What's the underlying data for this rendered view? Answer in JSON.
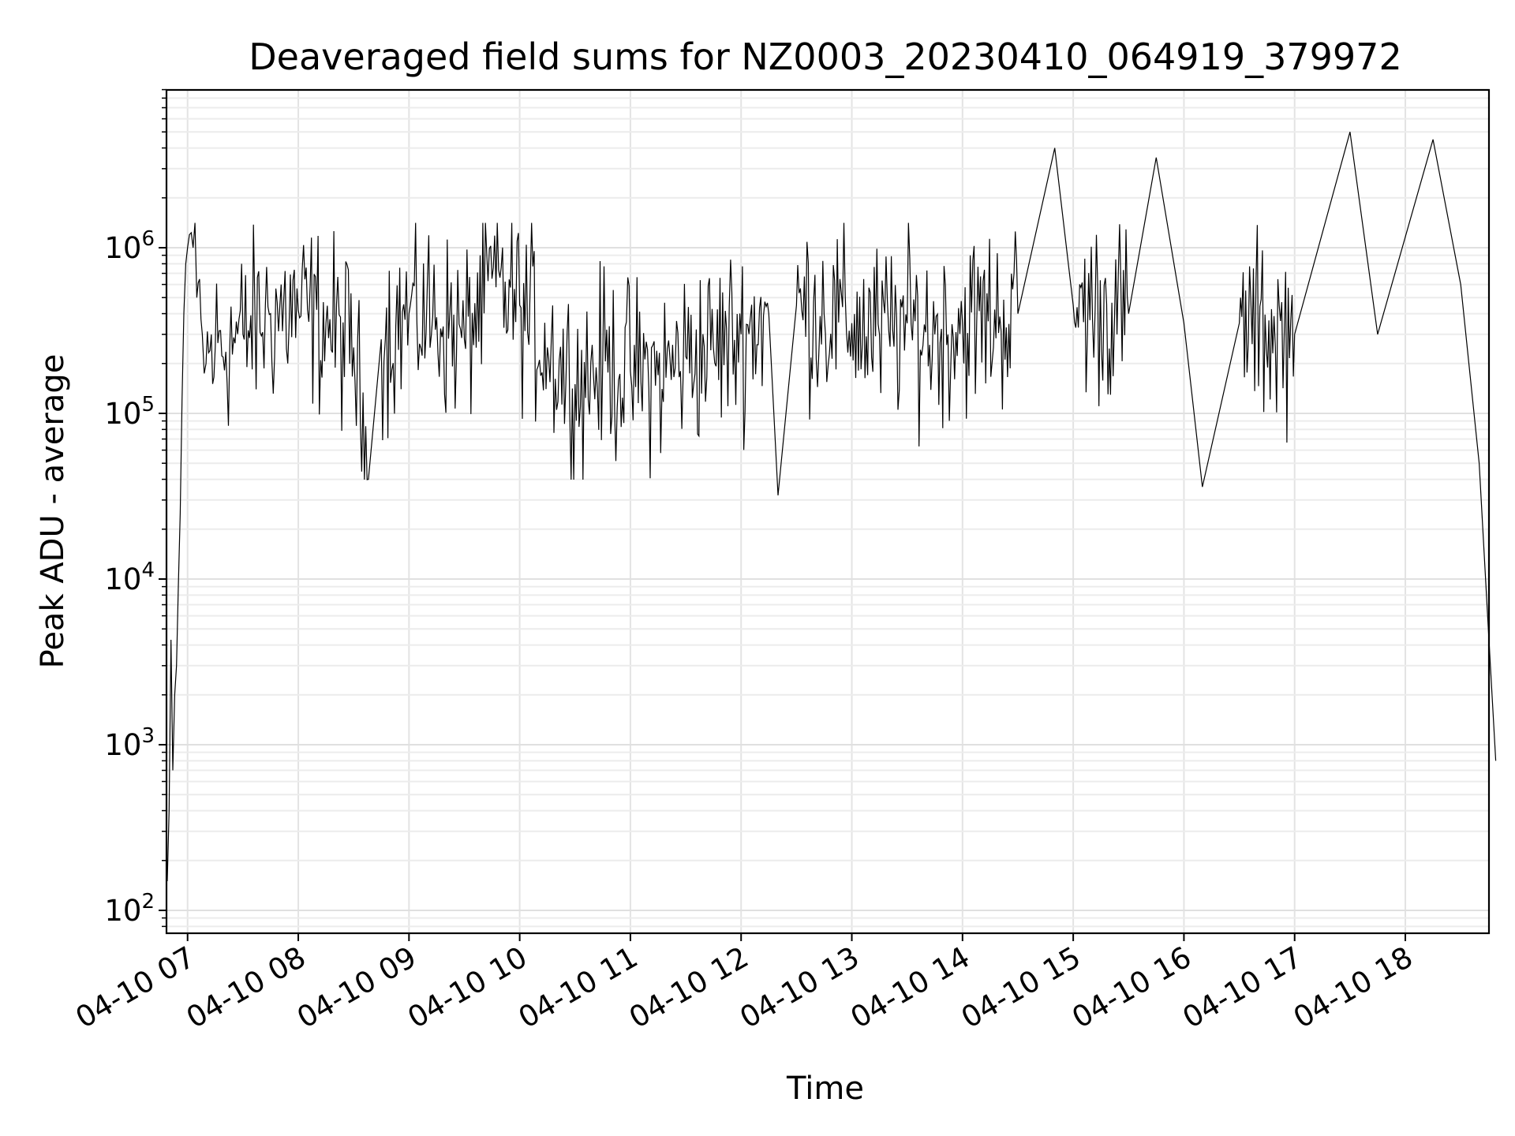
{
  "chart_data": {
    "type": "line",
    "title": "Deaveraged field sums for NZ0003_20230410_064919_379972",
    "xlabel": "Time",
    "ylabel": "Peak ADU - average",
    "y_scale": "log",
    "grid": true,
    "x_ticks": [
      "04-10 07",
      "04-10 08",
      "04-10 09",
      "04-10 10",
      "04-10 11",
      "04-10 12",
      "04-10 13",
      "04-10 14",
      "04-10 15",
      "04-10 16",
      "04-10 17",
      "04-10 18"
    ],
    "y_ticks": [
      {
        "base": "10",
        "exp": "2",
        "value": 100
      },
      {
        "base": "10",
        "exp": "3",
        "value": 1000
      },
      {
        "base": "10",
        "exp": "4",
        "value": 10000
      },
      {
        "base": "10",
        "exp": "5",
        "value": 100000
      },
      {
        "base": "10",
        "exp": "6",
        "value": 1000000
      }
    ],
    "xlim": [
      "2023-04-10 06:49",
      "2023-04-10 18:49"
    ],
    "ylim": [
      75,
      9000000
    ],
    "series": [
      {
        "color": "#000000",
        "points": [
          [
            "2023-04-10 06:49",
            150
          ],
          [
            "2023-04-10 06:50",
            400
          ],
          [
            "2023-04-10 06:51",
            4300
          ],
          [
            "2023-04-10 06:52",
            700
          ],
          [
            "2023-04-10 06:53",
            2000
          ],
          [
            "2023-04-10 06:54",
            3000
          ],
          [
            "2023-04-10 06:55",
            9000
          ],
          [
            "2023-04-10 06:56",
            25000
          ],
          [
            "2023-04-10 06:57",
            120000
          ],
          [
            "2023-04-10 06:58",
            400000
          ],
          [
            "2023-04-10 06:59",
            800000
          ],
          [
            "2023-04-10 07:00",
            1000000
          ],
          [
            "2023-04-10 07:01",
            1200000
          ],
          [
            "2023-04-10 07:03",
            1000000
          ],
          [
            "2023-04-10 07:05",
            500000
          ],
          [
            "2023-04-10 07:08",
            300000
          ],
          [
            "2023-04-10 07:10",
            200000
          ],
          [
            "2023-04-10 07:15",
            250000
          ],
          [
            "2023-04-10 07:30",
            300000
          ],
          [
            "2023-04-10 07:45",
            400000
          ],
          [
            "2023-04-10 08:00",
            420000
          ],
          [
            "2023-04-10 08:15",
            350000
          ],
          [
            "2023-04-10 08:30",
            250000
          ],
          [
            "2023-04-10 08:38",
            40000
          ],
          [
            "2023-04-10 08:45",
            280000
          ],
          [
            "2023-04-10 09:00",
            400000
          ],
          [
            "2023-04-10 09:15",
            380000
          ],
          [
            "2023-04-10 09:30",
            280000
          ],
          [
            "2023-04-10 09:45",
            650000
          ],
          [
            "2023-04-10 10:00",
            450000
          ],
          [
            "2023-04-10 10:15",
            250000
          ],
          [
            "2023-04-10 10:30",
            150000
          ],
          [
            "2023-04-10 10:45",
            200000
          ],
          [
            "2023-04-10 11:00",
            180000
          ],
          [
            "2023-04-10 11:15",
            170000
          ],
          [
            "2023-04-10 11:30",
            220000
          ],
          [
            "2023-04-10 11:45",
            250000
          ],
          [
            "2023-04-10 12:00",
            300000
          ],
          [
            "2023-04-10 12:15",
            400000
          ],
          [
            "2023-04-10 12:20",
            32000
          ],
          [
            "2023-04-10 12:30",
            450000
          ],
          [
            "2023-04-10 12:45",
            400000
          ],
          [
            "2023-04-10 13:00",
            350000
          ],
          [
            "2023-04-10 13:15",
            300000
          ],
          [
            "2023-04-10 13:30",
            350000
          ],
          [
            "2023-04-10 13:45",
            300000
          ],
          [
            "2023-04-10 14:00",
            350000
          ],
          [
            "2023-04-10 14:30",
            400000
          ],
          [
            "2023-04-10 14:50",
            4000000
          ],
          [
            "2023-04-10 15:00",
            450000
          ],
          [
            "2023-04-10 15:30",
            400000
          ],
          [
            "2023-04-10 15:45",
            3500000
          ],
          [
            "2023-04-10 16:00",
            350000
          ],
          [
            "2023-04-10 16:10",
            36000
          ],
          [
            "2023-04-10 16:30",
            350000
          ],
          [
            "2023-04-10 17:00",
            300000
          ],
          [
            "2023-04-10 17:30",
            5000000
          ],
          [
            "2023-04-10 17:45",
            300000
          ],
          [
            "2023-04-10 18:15",
            4500000
          ],
          [
            "2023-04-10 18:30",
            600000
          ],
          [
            "2023-04-10 18:40",
            50000
          ],
          [
            "2023-04-10 18:45",
            5000
          ],
          [
            "2023-04-10 18:49",
            800
          ]
        ]
      }
    ]
  }
}
